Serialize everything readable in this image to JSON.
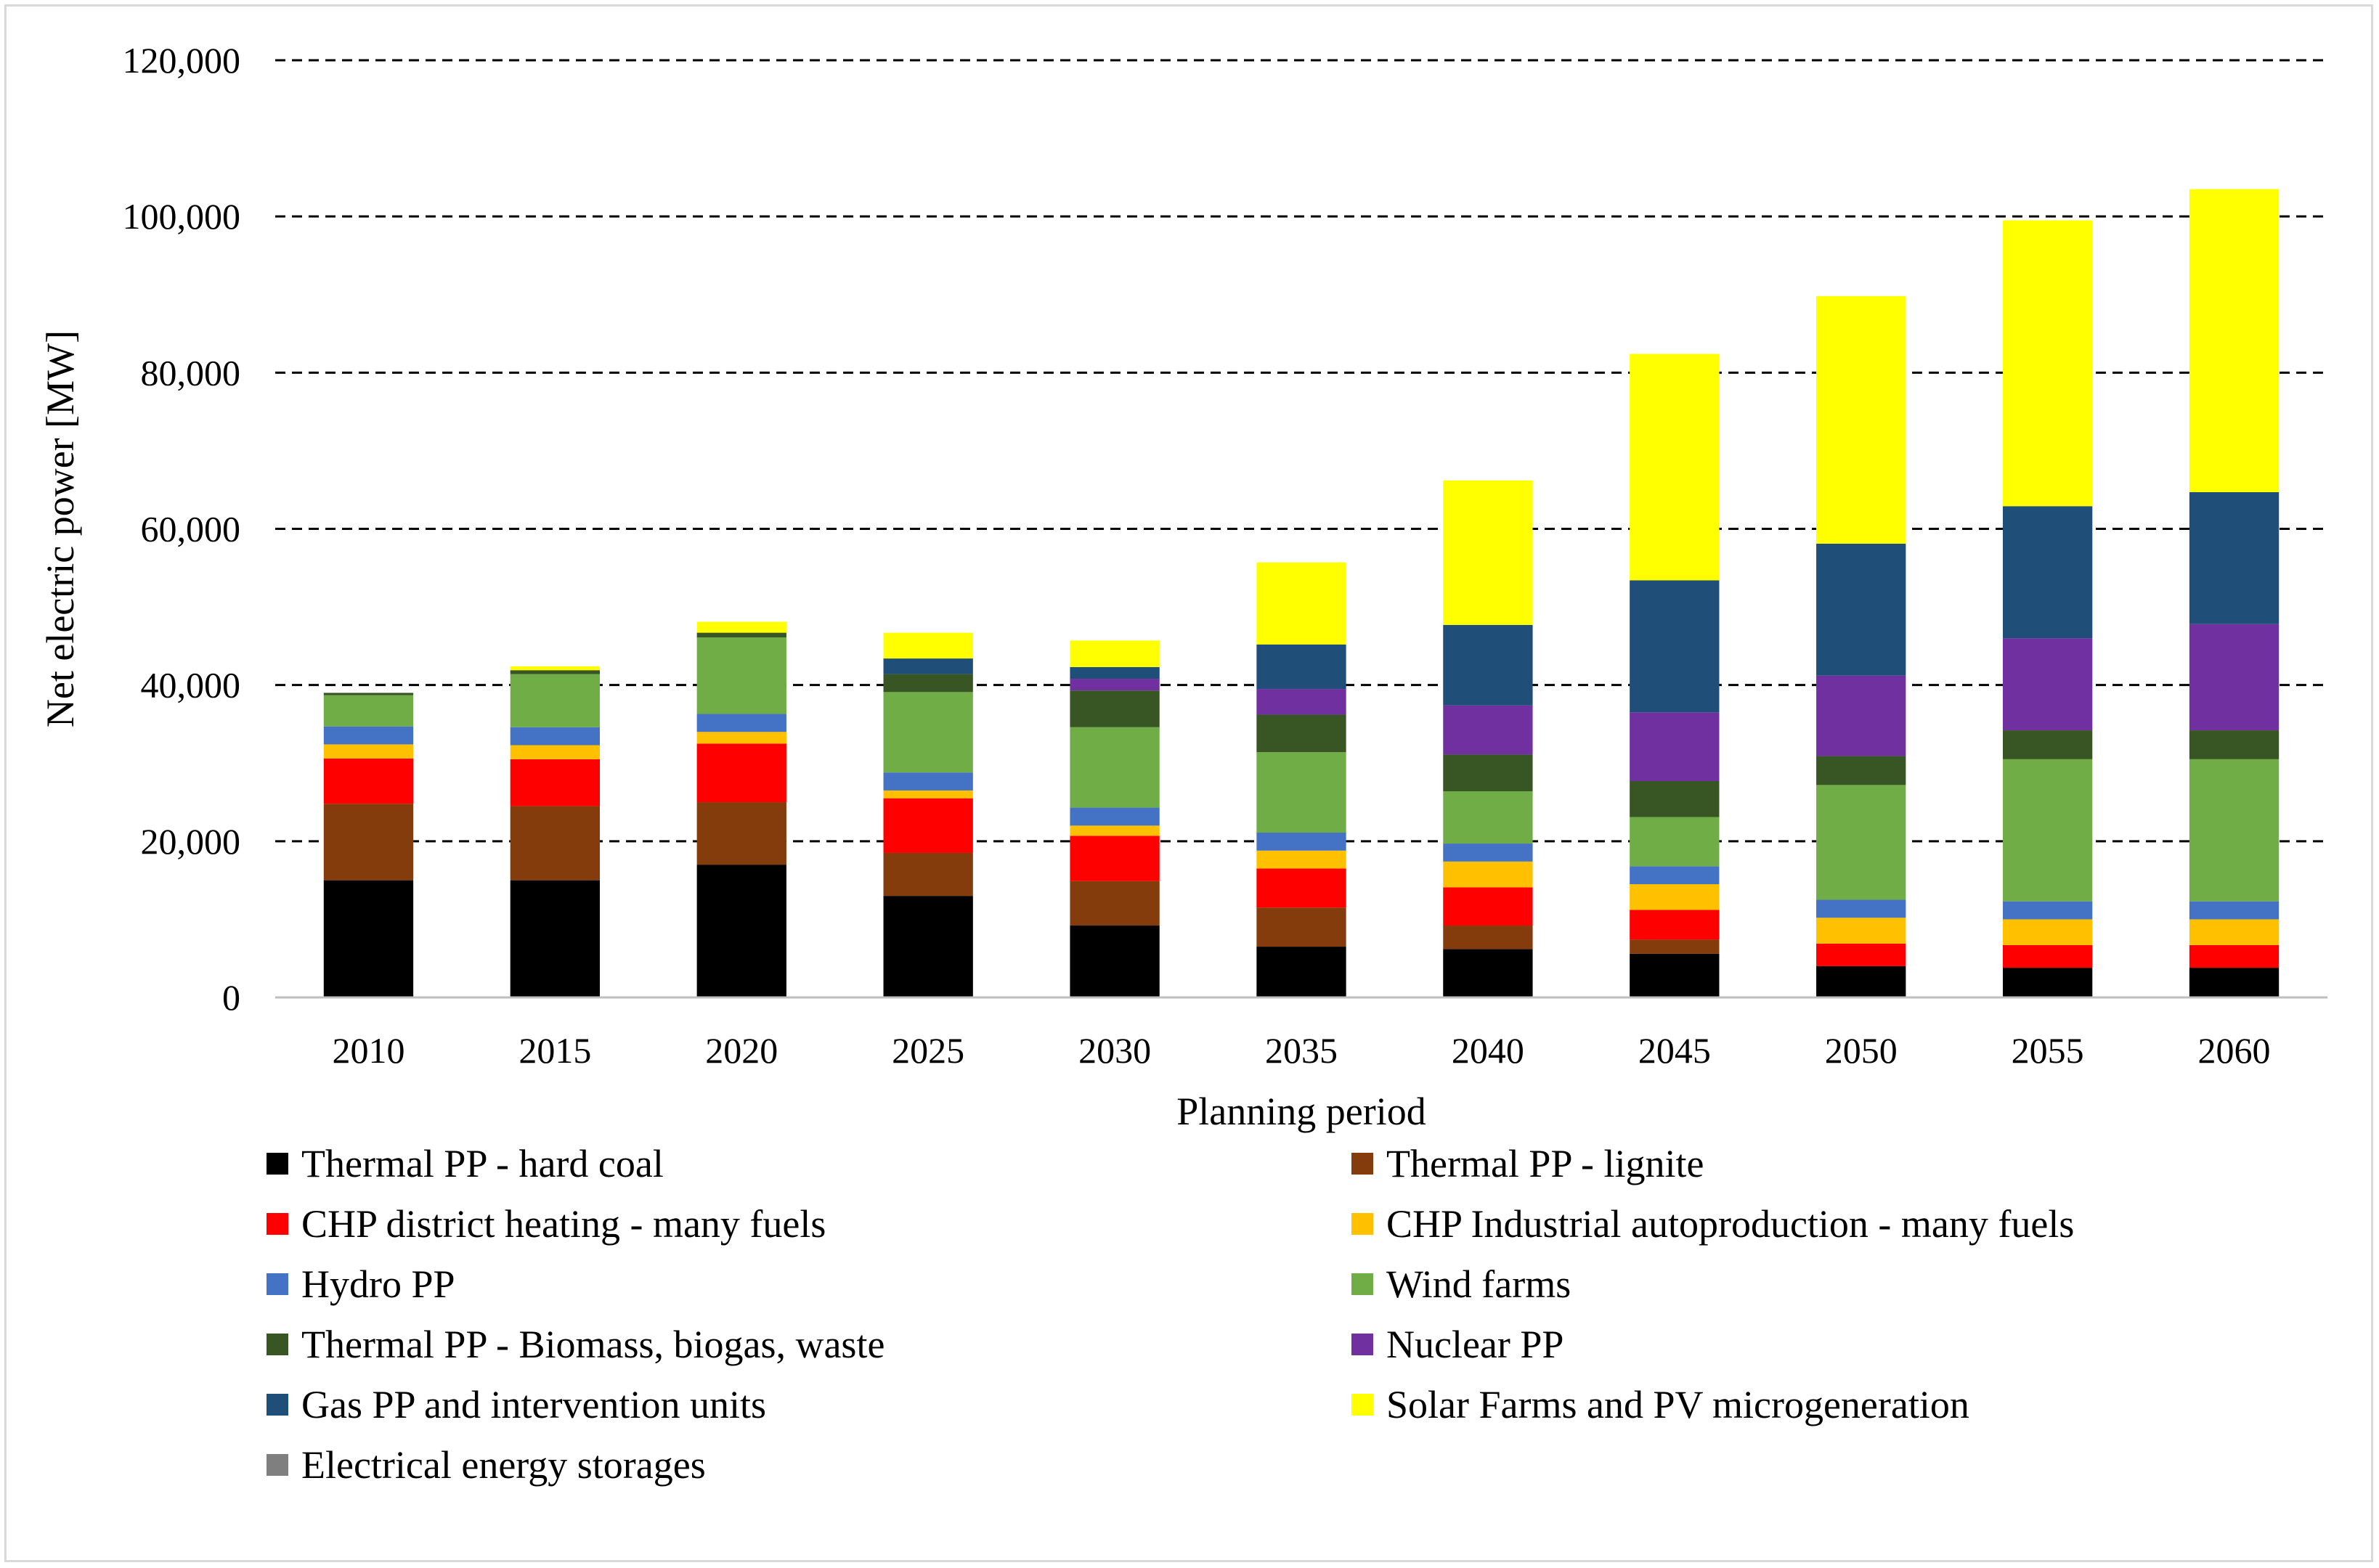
{
  "chart_data": {
    "type": "bar",
    "stacked": true,
    "title": "",
    "xlabel": "Planning period",
    "ylabel": "Net electric power [MW]",
    "ylim": [
      0,
      120000
    ],
    "yticks": [
      "0",
      "20,000",
      "40,000",
      "60,000",
      "80,000",
      "100,000",
      "120,000"
    ],
    "ytick_values": [
      0,
      20000,
      40000,
      60000,
      80000,
      100000,
      120000
    ],
    "grid": "horizontal dashed",
    "legend_position": "bottom",
    "categories": [
      "2010",
      "2015",
      "2020",
      "2025",
      "2030",
      "2035",
      "2040",
      "2045",
      "2050",
      "2055",
      "2060"
    ],
    "series": [
      {
        "name": "Thermal PP - hard coal",
        "color": "#000000",
        "values": [
          15000,
          15000,
          17000,
          13000,
          9200,
          6500,
          6200,
          5600,
          4000,
          3800,
          3800
        ]
      },
      {
        "name": "Thermal PP - lignite",
        "color": "#843c0c",
        "values": [
          9800,
          9500,
          8000,
          5500,
          5700,
          5000,
          3000,
          1800,
          0,
          0,
          0
        ]
      },
      {
        "name": "CHP district heating - many fuels",
        "color": "#ff0000",
        "values": [
          5800,
          6000,
          7500,
          7000,
          5800,
          5000,
          4900,
          3800,
          2900,
          2900,
          2900
        ]
      },
      {
        "name": "CHP Industrial autoproduction - many fuels",
        "color": "#ffc000",
        "values": [
          1800,
          1800,
          1500,
          1000,
          1300,
          2300,
          3300,
          3300,
          3300,
          3300,
          3300
        ]
      },
      {
        "name": "Hydro PP",
        "color": "#4472c4",
        "values": [
          2300,
          2300,
          2300,
          2300,
          2300,
          2300,
          2300,
          2300,
          2300,
          2300,
          2300
        ]
      },
      {
        "name": "Wind farms",
        "color": "#70ad47",
        "values": [
          4000,
          6800,
          9800,
          10300,
          10300,
          10300,
          6700,
          6300,
          14700,
          18200,
          18200
        ]
      },
      {
        "name": "Thermal PP - Biomass, biogas, waste",
        "color": "#375623",
        "values": [
          300,
          500,
          600,
          2300,
          4700,
          4800,
          4700,
          4600,
          3700,
          3700,
          3700
        ]
      },
      {
        "name": "Nuclear PP",
        "color": "#7030a0",
        "values": [
          0,
          0,
          0,
          0,
          1500,
          3300,
          6300,
          8800,
          10300,
          11800,
          13600
        ]
      },
      {
        "name": "Gas PP and intervention units",
        "color": "#1f4e79",
        "values": [
          0,
          0,
          0,
          2000,
          1500,
          5700,
          10300,
          16900,
          16900,
          16900,
          16900
        ]
      },
      {
        "name": "Solar Farms and PV microgeneration",
        "color": "#ffff00",
        "values": [
          0,
          500,
          1400,
          3300,
          3400,
          10500,
          18500,
          29000,
          31700,
          36600,
          38800
        ]
      },
      {
        "name": "Electrical energy storages",
        "color": "#7f7f7f",
        "values": [
          0,
          0,
          0,
          0,
          0,
          0,
          0,
          0,
          0,
          0,
          0
        ]
      }
    ]
  }
}
